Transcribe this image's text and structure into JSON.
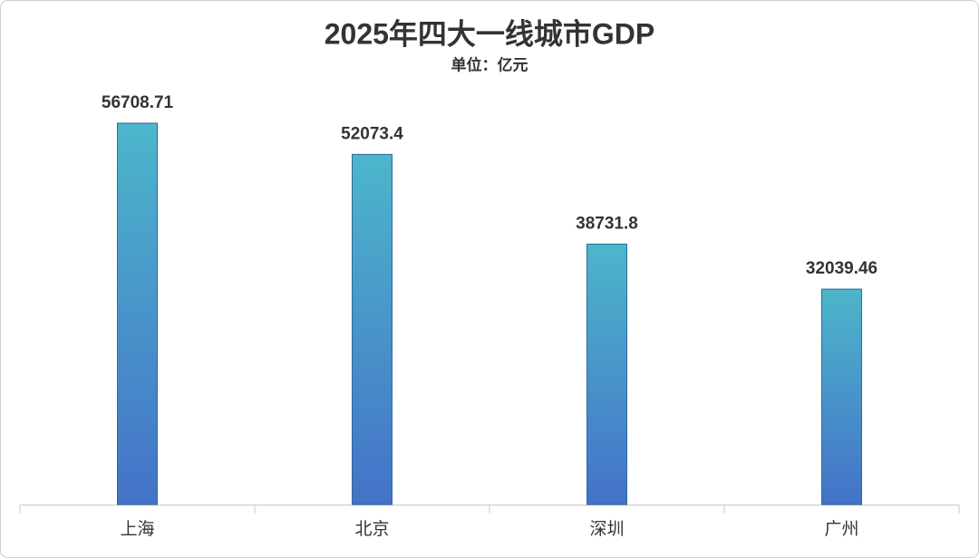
{
  "chart_data": {
    "type": "bar",
    "title": "2025年四大一线城市GDP",
    "subtitle": "单位：亿元",
    "categories": [
      "上海",
      "北京",
      "深圳",
      "广州"
    ],
    "values": [
      56708.71,
      52073.4,
      38731.8,
      32039.46
    ],
    "gradient": [
      "#4cb6cb",
      "#4472c8"
    ],
    "stroke": "#2f6a9a"
  }
}
